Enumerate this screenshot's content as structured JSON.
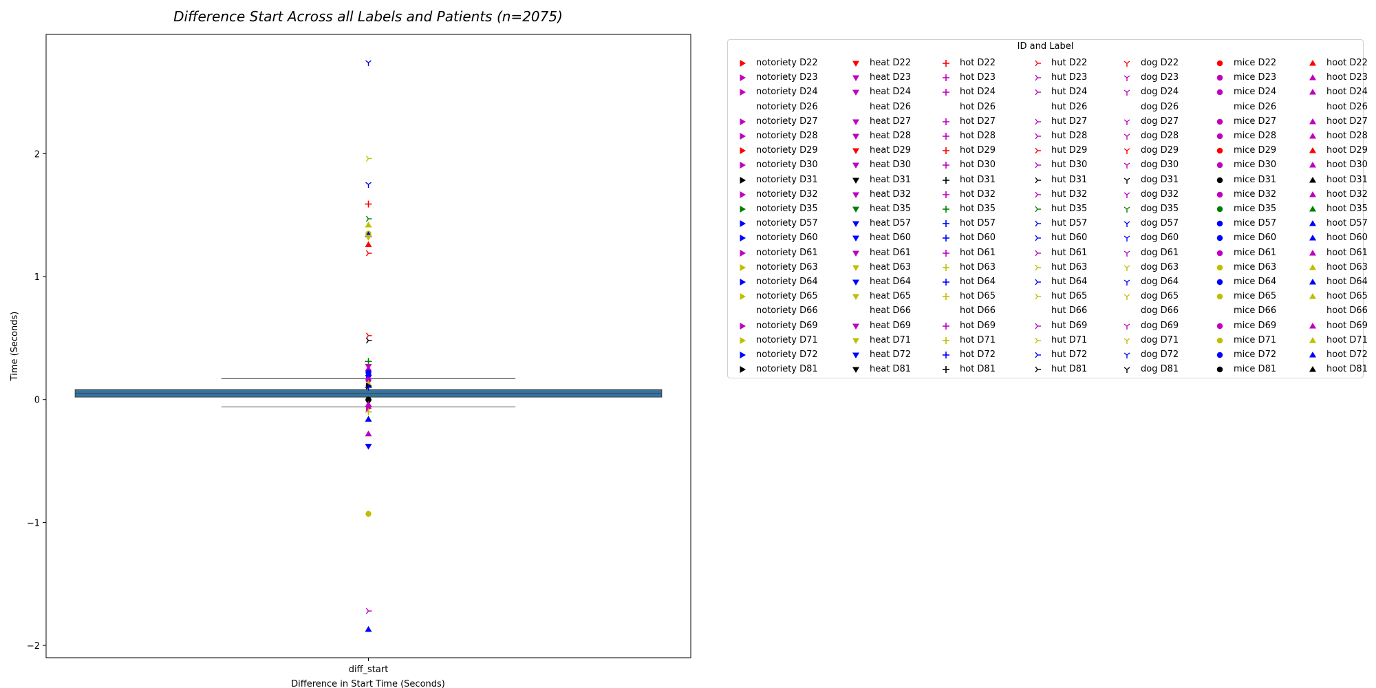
{
  "chart_data": {
    "type": "box",
    "title": "Difference Start Across all Labels and Patients (n=2075)",
    "xlabel": "Difference in Start Time (Seconds)",
    "ylabel": "Time (Seconds)",
    "categories": [
      "diff_start"
    ],
    "ylim": [
      -2.1,
      2.97
    ],
    "yticks": [
      -2,
      -1,
      0,
      1,
      2
    ],
    "grid": false,
    "box": {
      "q1": 0.02,
      "median": 0.05,
      "q3": 0.08,
      "whisker_low": -0.06,
      "whisker_high": 0.17,
      "color": "#3274a1"
    },
    "points": [
      {
        "label": "dog D57",
        "y": 2.74
      },
      {
        "label": "hut D71",
        "y": 1.96
      },
      {
        "label": "dog D72",
        "y": 1.75
      },
      {
        "label": "hot D29",
        "y": 1.59
      },
      {
        "label": "hut D35",
        "y": 1.47
      },
      {
        "label": "hoot D63",
        "y": 1.42
      },
      {
        "label": "mice D63",
        "y": 1.35
      },
      {
        "label": "hoot D57",
        "y": 1.34
      },
      {
        "label": "heat D63",
        "y": 1.32
      },
      {
        "label": "hoot D29",
        "y": 1.26
      },
      {
        "label": "hut D29",
        "y": 1.19
      },
      {
        "label": "hut D22",
        "y": 0.52
      },
      {
        "label": "hut D31",
        "y": 0.48
      },
      {
        "label": "hot D35",
        "y": 0.31
      },
      {
        "label": "heat D27",
        "y": 0.27
      },
      {
        "label": "hoot D23",
        "y": 0.25
      },
      {
        "label": "mice D64",
        "y": 0.22
      },
      {
        "label": "notoriety D57",
        "y": 0.2
      },
      {
        "label": "heat D60",
        "y": 0.18
      },
      {
        "label": "mice D28",
        "y": 0.16
      },
      {
        "label": "hoot D65",
        "y": 0.13
      },
      {
        "label": "notoriety D81",
        "y": 0.11
      },
      {
        "label": "hot D60",
        "y": 0.1
      },
      {
        "label": "mice D81",
        "y": 0.0
      },
      {
        "label": "heat D81",
        "y": -0.02
      },
      {
        "label": "hoot D61",
        "y": -0.04
      },
      {
        "label": "notoriety D61",
        "y": -0.07
      },
      {
        "label": "hot D65",
        "y": -0.1
      },
      {
        "label": "hoot D72",
        "y": -0.16
      },
      {
        "label": "hoot D69",
        "y": -0.28
      },
      {
        "label": "heat D64",
        "y": -0.38
      },
      {
        "label": "mice D71",
        "y": -0.93
      },
      {
        "label": "hut D61",
        "y": -1.72
      },
      {
        "label": "hoot D60",
        "y": -1.87
      }
    ],
    "legend": {
      "title": "ID and Label",
      "placement": "outside-right",
      "columns": [
        {
          "word": "notoriety",
          "marker": "triangle-right"
        },
        {
          "word": "heat",
          "marker": "triangle-down"
        },
        {
          "word": "hot",
          "marker": "plus"
        },
        {
          "word": "hut",
          "marker": "tri-right"
        },
        {
          "word": "dog",
          "marker": "tri-down"
        },
        {
          "word": "mice",
          "marker": "circle"
        },
        {
          "word": "hoot",
          "marker": "triangle-up"
        }
      ],
      "ids": [
        "D22",
        "D23",
        "D24",
        "D26",
        "D27",
        "D28",
        "D29",
        "D30",
        "D31",
        "D32",
        "D35",
        "D57",
        "D60",
        "D61",
        "D63",
        "D64",
        "D65",
        "D66",
        "D69",
        "D71",
        "D72",
        "D81"
      ],
      "id_colors": {
        "D22": "#ff0000",
        "D23": "#bf00bf",
        "D24": "#bf00bf",
        "D26": "none",
        "D27": "#bf00bf",
        "D28": "#bf00bf",
        "D29": "#ff0000",
        "D30": "#bf00bf",
        "D31": "#000000",
        "D32": "#bf00bf",
        "D35": "#008000",
        "D57": "#0000ff",
        "D60": "#0000ff",
        "D61": "#bf00bf",
        "D63": "#bfbf00",
        "D64": "#0000ff",
        "D65": "#bfbf00",
        "D66": "none",
        "D69": "#bf00bf",
        "D71": "#bfbf00",
        "D72": "#0000ff",
        "D81": "#000000"
      }
    }
  }
}
